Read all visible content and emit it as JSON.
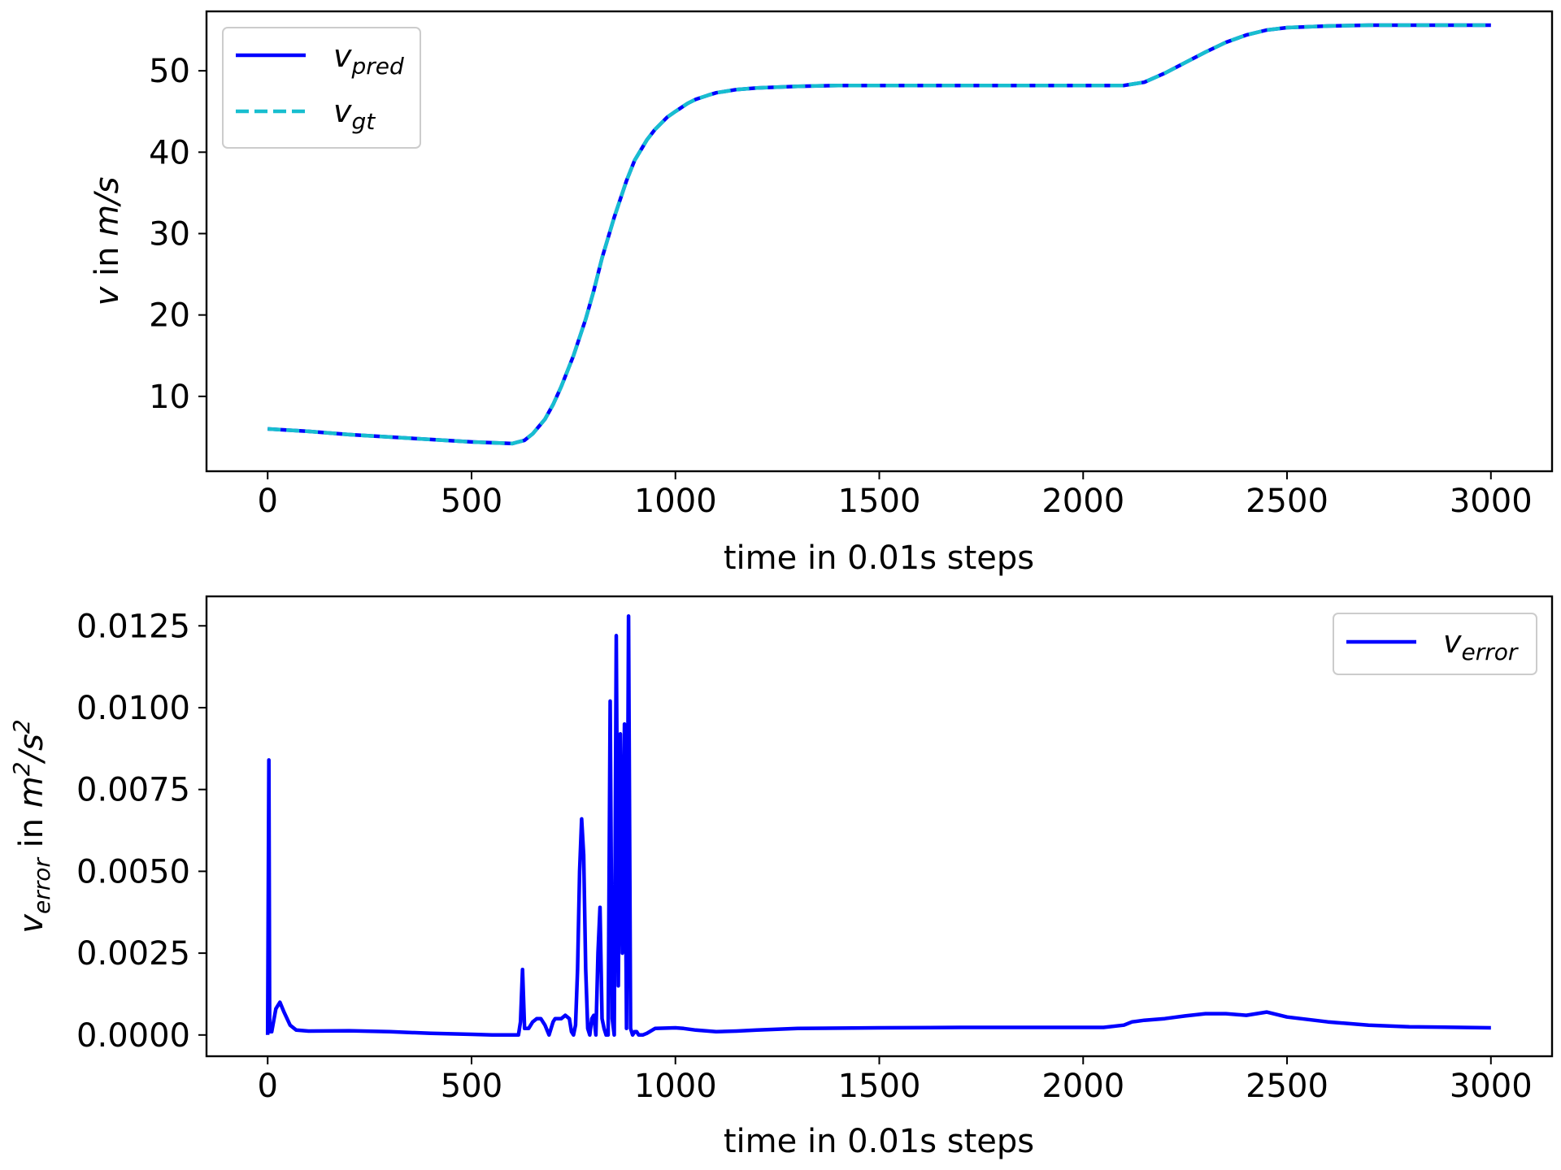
{
  "chart_data": [
    {
      "type": "line",
      "xlabel": "time in 0.01s steps",
      "ylabel_parts": {
        "var": "v",
        "rest": " in ",
        "unit": "m/s"
      },
      "xlim": [
        -150,
        3150
      ],
      "ylim": [
        0.8,
        57.3
      ],
      "xticks": [
        0,
        500,
        1000,
        1500,
        2000,
        2500,
        3000
      ],
      "yticks": [
        10,
        20,
        30,
        40,
        50
      ],
      "legend": "top-left",
      "grid": false,
      "series": [
        {
          "name": "v_pred",
          "name_main": "v",
          "name_sub": "pred",
          "color": "#0000ff",
          "style": "solid",
          "x": [
            0,
            100,
            200,
            300,
            400,
            500,
            550,
            600,
            630,
            650,
            680,
            700,
            720,
            750,
            780,
            800,
            820,
            850,
            880,
            900,
            930,
            950,
            980,
            1000,
            1030,
            1050,
            1080,
            1100,
            1150,
            1200,
            1300,
            1400,
            1500,
            1600,
            1800,
            2000,
            2100,
            2150,
            2200,
            2250,
            2300,
            2350,
            2400,
            2450,
            2500,
            2550,
            2600,
            2700,
            2800,
            3000
          ],
          "y": [
            6.0,
            5.7,
            5.3,
            5.0,
            4.7,
            4.4,
            4.3,
            4.2,
            4.6,
            5.4,
            7.2,
            9.0,
            11.2,
            15.0,
            19.5,
            23.0,
            27.0,
            32.0,
            36.5,
            39.0,
            41.5,
            42.8,
            44.3,
            45.0,
            46.0,
            46.5,
            47.0,
            47.3,
            47.7,
            47.9,
            48.1,
            48.2,
            48.2,
            48.2,
            48.2,
            48.2,
            48.2,
            48.6,
            49.7,
            51.0,
            52.3,
            53.5,
            54.4,
            55.0,
            55.3,
            55.4,
            55.5,
            55.6,
            55.6,
            55.6
          ]
        },
        {
          "name": "v_gt",
          "name_main": "v",
          "name_sub": "gt",
          "color": "#17becf",
          "style": "dashed",
          "x": [
            0,
            100,
            200,
            300,
            400,
            500,
            550,
            600,
            630,
            650,
            680,
            700,
            720,
            750,
            780,
            800,
            820,
            850,
            880,
            900,
            930,
            950,
            980,
            1000,
            1030,
            1050,
            1080,
            1100,
            1150,
            1200,
            1300,
            1400,
            1500,
            1600,
            1800,
            2000,
            2100,
            2150,
            2200,
            2250,
            2300,
            2350,
            2400,
            2450,
            2500,
            2550,
            2600,
            2700,
            2800,
            3000
          ],
          "y": [
            6.0,
            5.7,
            5.3,
            5.0,
            4.7,
            4.4,
            4.3,
            4.2,
            4.6,
            5.4,
            7.2,
            9.0,
            11.2,
            15.0,
            19.5,
            23.0,
            27.0,
            32.0,
            36.5,
            39.0,
            41.5,
            42.8,
            44.3,
            45.0,
            46.0,
            46.5,
            47.0,
            47.3,
            47.7,
            47.9,
            48.1,
            48.2,
            48.2,
            48.2,
            48.2,
            48.2,
            48.2,
            48.6,
            49.7,
            51.0,
            52.3,
            53.5,
            54.4,
            55.0,
            55.3,
            55.4,
            55.5,
            55.6,
            55.6,
            55.6
          ]
        }
      ]
    },
    {
      "type": "line",
      "xlabel": "time in 0.01s steps",
      "ylabel_parts": {
        "var": "v",
        "sub": "error",
        "rest": " in ",
        "unit": "m",
        "sup1": "2",
        "slash": "/s",
        "sup2": "2"
      },
      "xlim": [
        -150,
        3150
      ],
      "ylim": [
        -0.00065,
        0.0134
      ],
      "xticks": [
        0,
        500,
        1000,
        1500,
        2000,
        2500,
        3000
      ],
      "yticks": [
        0.0,
        0.0025,
        0.005,
        0.0075,
        0.01,
        0.0125
      ],
      "ytick_labels": [
        "0.0000",
        "0.0025",
        "0.0050",
        "0.0075",
        "0.0100",
        "0.0125"
      ],
      "legend": "top-right",
      "grid": false,
      "series": [
        {
          "name": "v_error",
          "name_main": "v",
          "name_sub": "error",
          "color": "#0000ff",
          "style": "solid",
          "x": [
            0,
            3,
            5,
            10,
            20,
            30,
            40,
            55,
            70,
            100,
            200,
            300,
            400,
            500,
            550,
            600,
            615,
            620,
            625,
            630,
            640,
            650,
            660,
            670,
            680,
            690,
            700,
            705,
            710,
            720,
            730,
            740,
            745,
            750,
            755,
            760,
            765,
            770,
            775,
            780,
            785,
            790,
            795,
            800,
            805,
            810,
            815,
            820,
            825,
            830,
            835,
            840,
            845,
            850,
            855,
            860,
            865,
            870,
            875,
            880,
            885,
            890,
            895,
            900,
            905,
            910,
            915,
            920,
            930,
            950,
            1000,
            1020,
            1050,
            1100,
            1150,
            1200,
            1300,
            1500,
            1700,
            1900,
            2050,
            2100,
            2120,
            2150,
            2200,
            2250,
            2300,
            2350,
            2400,
            2450,
            2500,
            2600,
            2700,
            2800,
            3000
          ],
          "y": [
            0.0,
            0.0084,
            0.0001,
            0.0001,
            0.0008,
            0.001,
            0.0007,
            0.0003,
            0.00015,
            0.00012,
            0.00013,
            0.0001,
            5e-05,
            2e-05,
            0.0,
            0.0,
            0.0,
            0.0004,
            0.002,
            0.0002,
            0.0002,
            0.0004,
            0.0005,
            0.0005,
            0.0003,
            0.0,
            0.0004,
            0.0005,
            0.0005,
            0.0005,
            0.0006,
            0.0005,
            0.0001,
            0.0,
            0.0003,
            0.002,
            0.005,
            0.0066,
            0.0055,
            0.002,
            0.0002,
            0.0,
            0.0005,
            0.0006,
            0.0,
            0.0025,
            0.0039,
            0.0005,
            0.0002,
            0.0,
            0.0,
            0.0102,
            0.0005,
            0.0,
            0.0122,
            0.0015,
            0.0092,
            0.0025,
            0.0095,
            0.0002,
            0.0128,
            0.0002,
            0.0,
            0.0001,
            0.0001,
            0.0,
            0.0,
            0.0,
            5e-05,
            0.0002,
            0.00022,
            0.0002,
            0.00015,
            0.0001,
            0.00012,
            0.00015,
            0.0002,
            0.00022,
            0.00023,
            0.00023,
            0.00023,
            0.0003,
            0.0004,
            0.00045,
            0.0005,
            0.00058,
            0.00065,
            0.00065,
            0.0006,
            0.0007,
            0.00055,
            0.0004,
            0.0003,
            0.00025,
            0.00022
          ]
        }
      ]
    }
  ]
}
